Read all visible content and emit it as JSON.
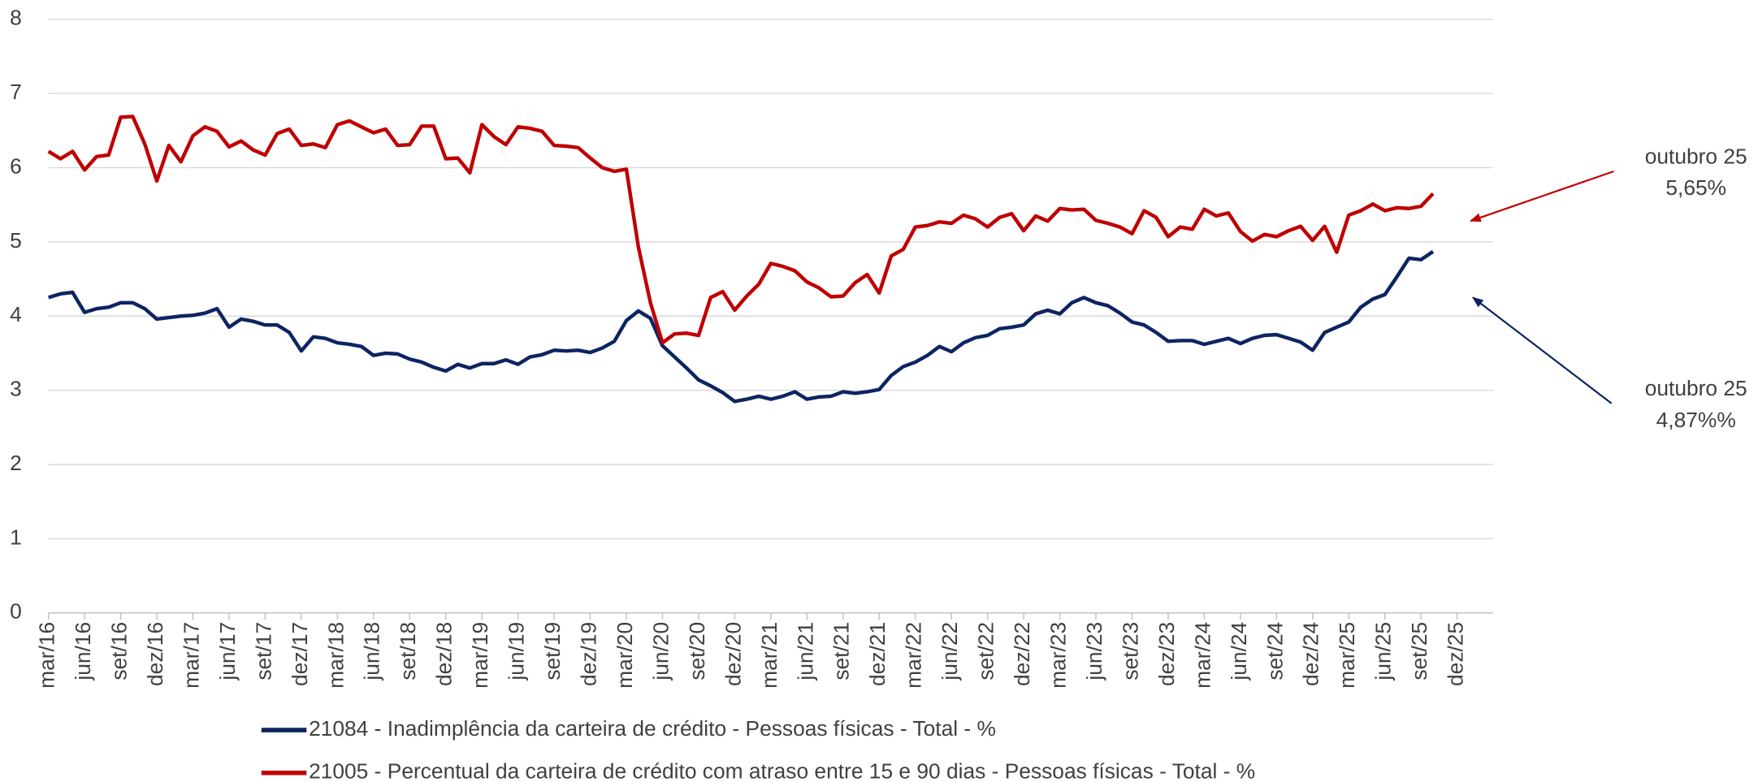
{
  "chart_data": {
    "type": "line",
    "categories": [
      "mar/16",
      null,
      null,
      "jun/16",
      null,
      null,
      "set/16",
      null,
      null,
      "dez/16",
      null,
      null,
      "mar/17",
      null,
      null,
      "jun/17",
      null,
      null,
      "set/17",
      null,
      null,
      "dez/17",
      null,
      null,
      "mar/18",
      null,
      null,
      "jun/18",
      null,
      null,
      "set/18",
      null,
      null,
      "dez/18",
      null,
      null,
      "mar/19",
      null,
      null,
      "jun/19",
      null,
      null,
      "set/19",
      null,
      null,
      "dez/19",
      null,
      null,
      "mar/20",
      null,
      null,
      "jun/20",
      null,
      null,
      "set/20",
      null,
      null,
      "dez/20",
      null,
      null,
      "mar/21",
      null,
      null,
      "jun/21",
      null,
      null,
      "set/21",
      null,
      null,
      "dez/21",
      null,
      null,
      "mar/22",
      null,
      null,
      "jun/22",
      null,
      null,
      "set/22",
      null,
      null,
      "dez/22",
      null,
      null,
      "mar/23",
      null,
      null,
      "jun/23",
      null,
      null,
      "set/23",
      null,
      null,
      "dez/23",
      null,
      null,
      "mar/24",
      null,
      null,
      "jun/24",
      null,
      null,
      "set/24",
      null,
      null,
      "dez/24",
      null,
      null,
      "mar/25",
      null,
      null,
      "jun/25",
      null,
      null,
      "set/25",
      null,
      null,
      "dez/25"
    ],
    "series": [
      {
        "name": "21084 - Inadimplência da carteira de crédito - Pessoas físicas - Total - %",
        "color": "#0d2463",
        "values": [
          4.25,
          4.3,
          4.32,
          4.05,
          4.1,
          4.12,
          4.18,
          4.18,
          4.1,
          3.96,
          3.98,
          4.0,
          4.01,
          4.04,
          4.1,
          3.85,
          3.96,
          3.93,
          3.88,
          3.88,
          3.78,
          3.53,
          3.72,
          3.7,
          3.64,
          3.62,
          3.59,
          3.47,
          3.5,
          3.49,
          3.42,
          3.38,
          3.31,
          3.26,
          3.35,
          3.3,
          3.36,
          3.36,
          3.41,
          3.35,
          3.45,
          3.48,
          3.54,
          3.53,
          3.54,
          3.51,
          3.57,
          3.66,
          3.94,
          4.07,
          3.97,
          3.6,
          3.45,
          3.3,
          3.14,
          3.06,
          2.97,
          2.85,
          2.88,
          2.92,
          2.88,
          2.92,
          2.98,
          2.88,
          2.91,
          2.92,
          2.98,
          2.96,
          2.98,
          3.01,
          3.2,
          3.32,
          3.38,
          3.47,
          3.59,
          3.52,
          3.64,
          3.71,
          3.74,
          3.83,
          3.85,
          3.88,
          4.03,
          4.08,
          4.03,
          4.18,
          4.25,
          4.18,
          4.14,
          4.04,
          3.92,
          3.88,
          3.78,
          3.66,
          3.67,
          3.67,
          3.62,
          3.66,
          3.7,
          3.63,
          3.7,
          3.74,
          3.75,
          3.7,
          3.65,
          3.54,
          3.78,
          3.85,
          3.92,
          4.12,
          4.23,
          4.29,
          4.53,
          4.78,
          4.76,
          4.87,
          null,
          null
        ]
      },
      {
        "name": "21005 - Percentual da carteira de crédito com atraso entre 15 e 90 dias - Pessoas físicas - Total - %",
        "color": "#c00000",
        "values": [
          6.22,
          6.12,
          6.22,
          5.97,
          6.15,
          6.17,
          6.68,
          6.69,
          6.32,
          5.82,
          6.3,
          6.08,
          6.43,
          6.55,
          6.49,
          6.28,
          6.36,
          6.24,
          6.17,
          6.46,
          6.52,
          6.3,
          6.32,
          6.27,
          6.58,
          6.63,
          6.55,
          6.47,
          6.52,
          6.3,
          6.31,
          6.56,
          6.56,
          6.12,
          6.13,
          5.93,
          6.58,
          6.42,
          6.31,
          6.55,
          6.53,
          6.49,
          6.3,
          6.29,
          6.27,
          6.13,
          6.0,
          5.95,
          5.98,
          4.93,
          4.18,
          3.64,
          3.76,
          3.77,
          3.74,
          4.25,
          4.33,
          4.08,
          4.27,
          4.43,
          4.71,
          4.67,
          4.61,
          4.46,
          4.38,
          4.26,
          4.27,
          4.45,
          4.56,
          4.31,
          4.81,
          4.9,
          5.2,
          5.22,
          5.27,
          5.25,
          5.36,
          5.31,
          5.2,
          5.33,
          5.38,
          5.15,
          5.35,
          5.28,
          5.45,
          5.43,
          5.44,
          5.29,
          5.25,
          5.2,
          5.11,
          5.42,
          5.33,
          5.07,
          5.2,
          5.17,
          5.44,
          5.35,
          5.39,
          5.14,
          5.01,
          5.1,
          5.07,
          5.15,
          5.21,
          5.02,
          5.21,
          4.86,
          5.36,
          5.42,
          5.51,
          5.42,
          5.46,
          5.45,
          5.48,
          5.65,
          null,
          null
        ]
      }
    ],
    "ylim": [
      0,
      8
    ],
    "yticks": [
      0,
      1,
      2,
      3,
      4,
      5,
      6,
      7,
      8
    ],
    "grid": true,
    "annotations": [
      {
        "lines": [
          "outubro 25",
          "5,65%"
        ],
        "color": "#c00000"
      },
      {
        "lines": [
          "outubro 25",
          "4,87%%"
        ],
        "color": "#0d2463"
      }
    ]
  }
}
